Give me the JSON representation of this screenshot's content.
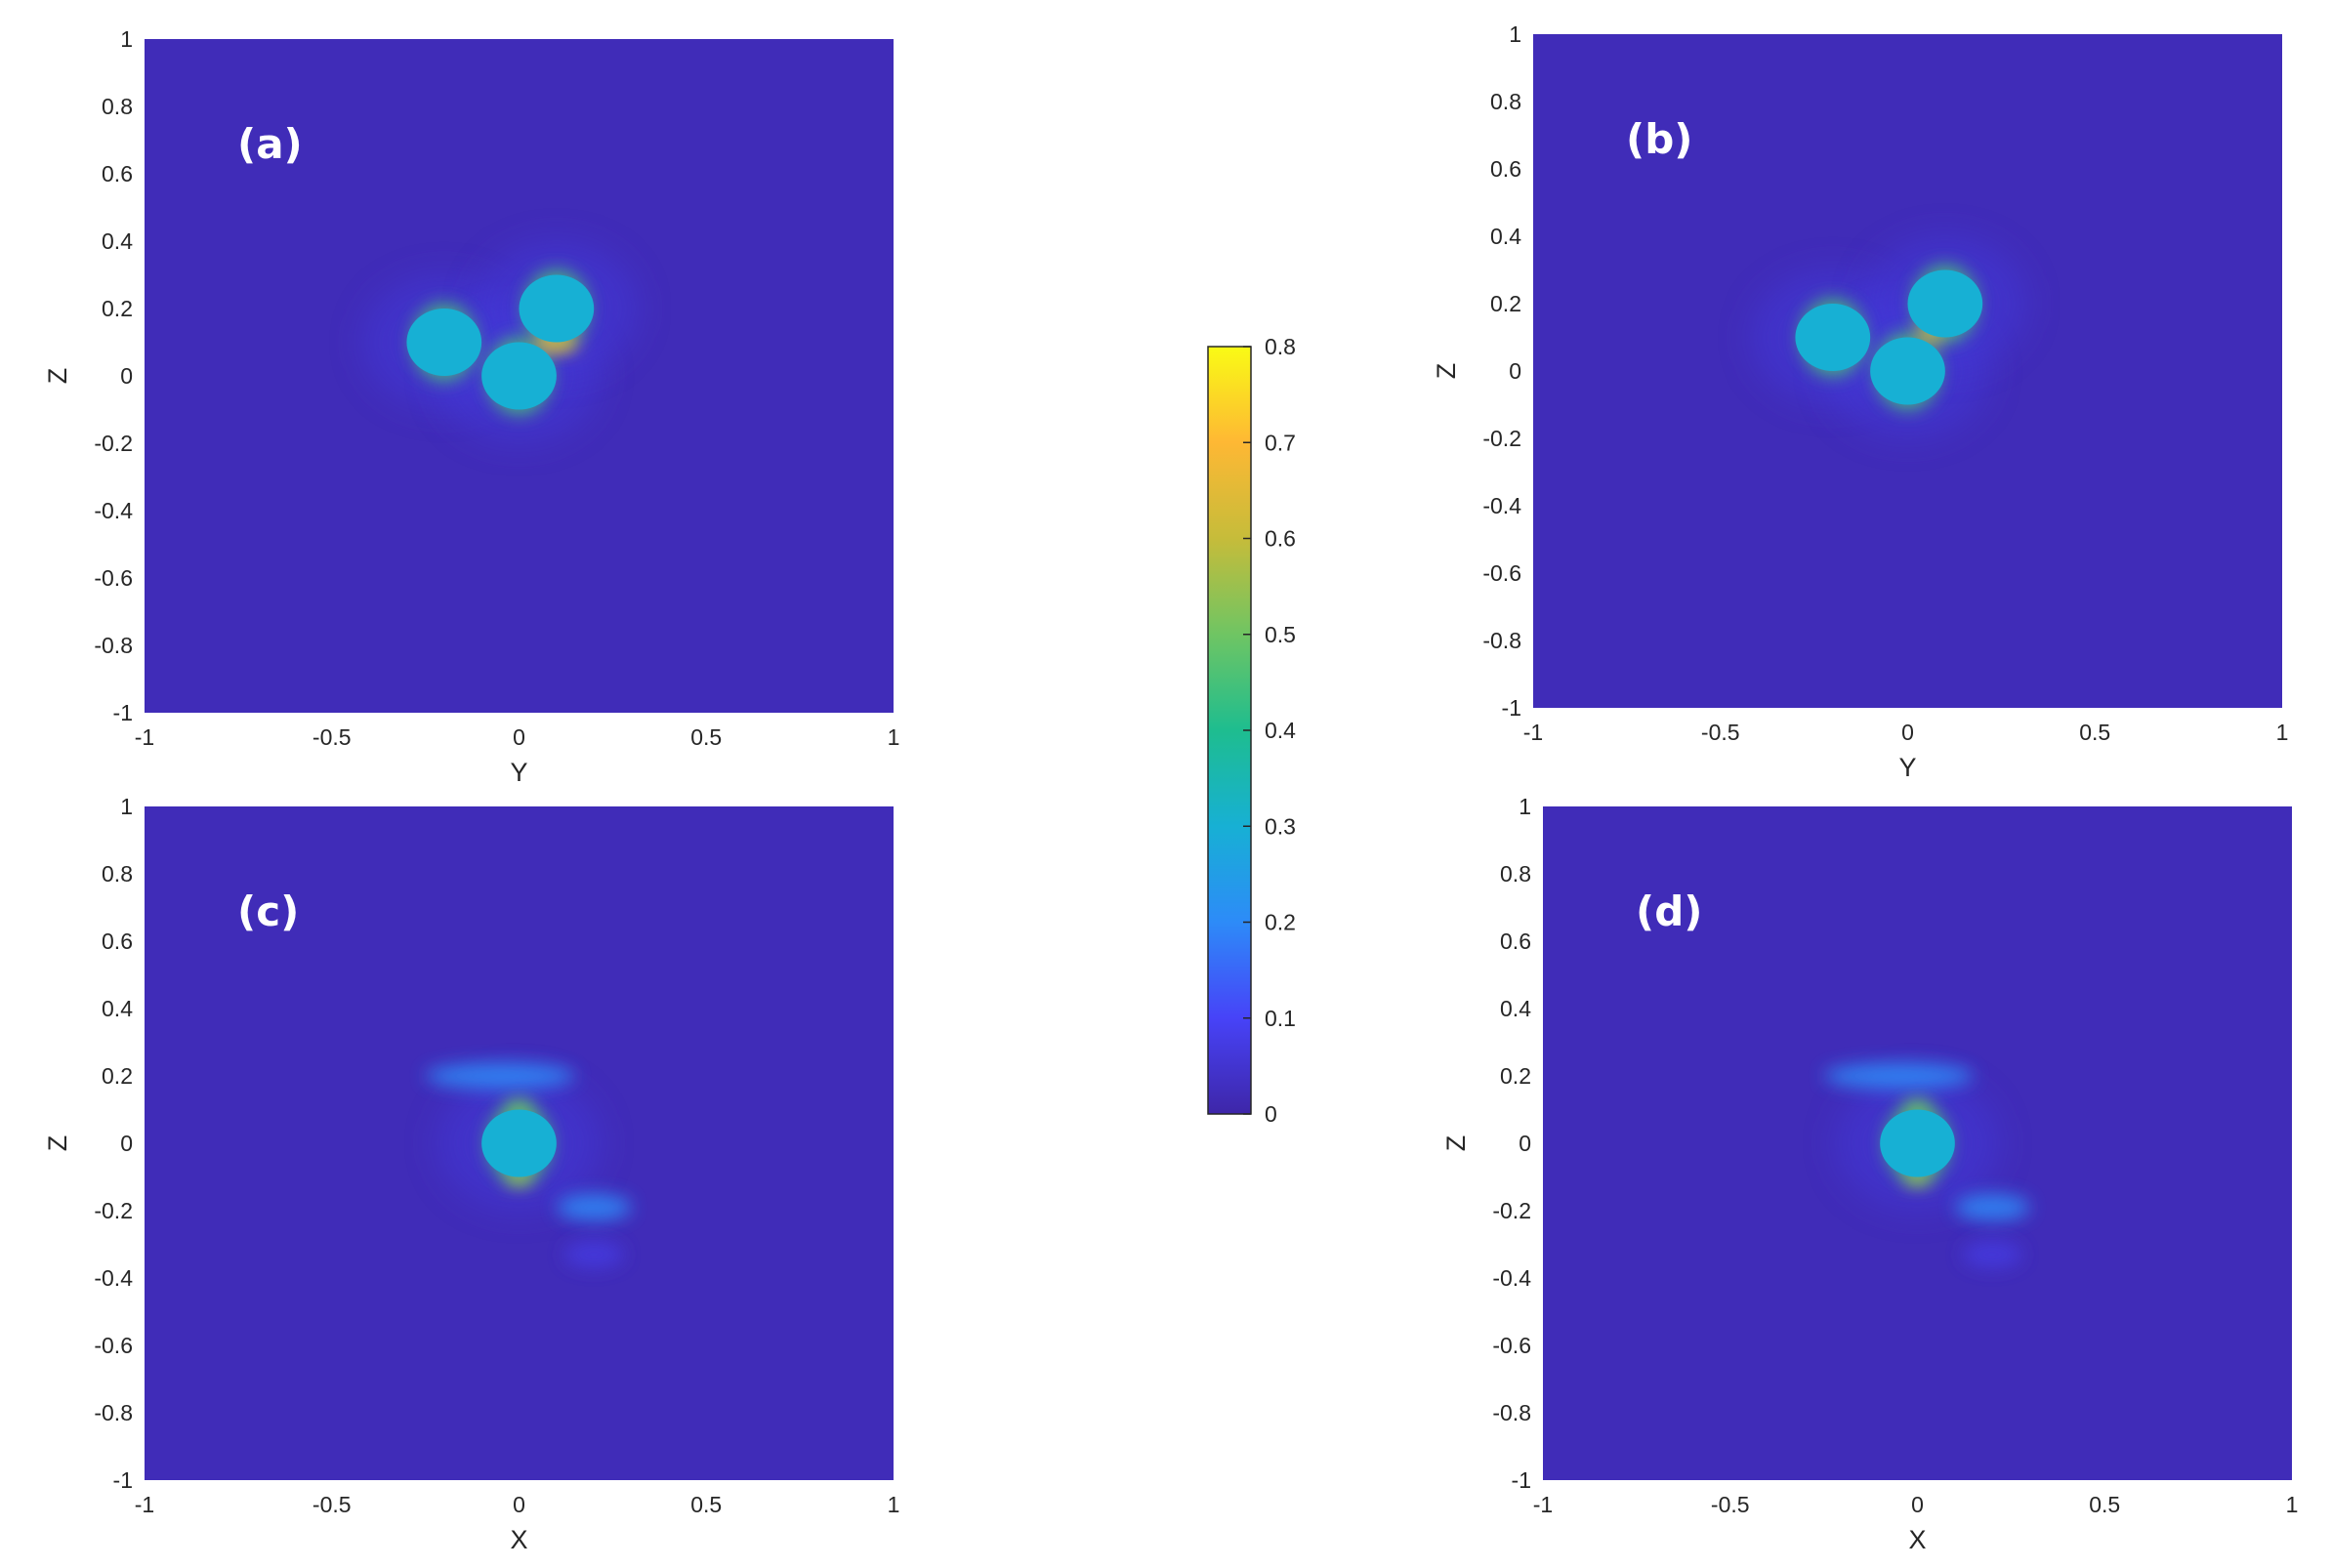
{
  "chart_data": [
    {
      "type": "heatmap",
      "panel_label": "(a)",
      "xlabel": "Y",
      "ylabel": "Z",
      "xlim": [
        -1,
        1
      ],
      "ylim": [
        -1,
        1
      ],
      "xticks": [
        "-1",
        "-0.5",
        "0",
        "0.5",
        "1"
      ],
      "yticks": [
        "-1",
        "-0.8",
        "-0.6",
        "-0.4",
        "-0.2",
        "0",
        "0.2",
        "0.4",
        "0.6",
        "0.8",
        "1"
      ],
      "background_value": 0.02,
      "particles": [
        {
          "x": -0.2,
          "y": 0.1,
          "radius": 0.1,
          "value": 0.3
        },
        {
          "x": 0.0,
          "y": 0.0,
          "radius": 0.1,
          "value": 0.3
        },
        {
          "x": 0.1,
          "y": 0.2,
          "radius": 0.1,
          "value": 0.3
        }
      ],
      "hotspots": [
        {
          "x": 0.08,
          "y": 0.1,
          "value": 0.7
        },
        {
          "x": 0.12,
          "y": 0.1,
          "value": 0.65
        }
      ],
      "lobes": []
    },
    {
      "type": "heatmap",
      "panel_label": "(b)",
      "xlabel": "Y",
      "ylabel": "Z",
      "xlim": [
        -1,
        1
      ],
      "ylim": [
        -1,
        1
      ],
      "xticks": [
        "-1",
        "-0.5",
        "0",
        "0.5",
        "1"
      ],
      "yticks": [
        "-1",
        "-0.8",
        "-0.6",
        "-0.4",
        "-0.2",
        "0",
        "0.2",
        "0.4",
        "0.6",
        "0.8",
        "1"
      ],
      "background_value": 0.02,
      "particles": [
        {
          "x": -0.2,
          "y": 0.1,
          "radius": 0.1,
          "value": 0.3
        },
        {
          "x": 0.0,
          "y": 0.0,
          "radius": 0.1,
          "value": 0.3
        },
        {
          "x": 0.1,
          "y": 0.2,
          "radius": 0.1,
          "value": 0.3
        }
      ],
      "hotspots": [
        {
          "x": 0.06,
          "y": 0.11,
          "value": 0.65
        }
      ],
      "lobes": []
    },
    {
      "type": "heatmap",
      "panel_label": "(c)",
      "xlabel": "X",
      "ylabel": "Z",
      "xlim": [
        -1,
        1
      ],
      "ylim": [
        -1,
        1
      ],
      "xticks": [
        "-1",
        "-0.5",
        "0",
        "0.5",
        "1"
      ],
      "yticks": [
        "-1",
        "-0.8",
        "-0.6",
        "-0.4",
        "-0.2",
        "0",
        "0.2",
        "0.4",
        "0.6",
        "0.8",
        "1"
      ],
      "background_value": 0.02,
      "particles": [
        {
          "x": 0.0,
          "y": 0.0,
          "radius": 0.1,
          "value": 0.3
        }
      ],
      "hotspots": [
        {
          "x": 0.0,
          "y": -0.1,
          "value": 0.55
        },
        {
          "x": 0.0,
          "y": 0.1,
          "value": 0.5
        }
      ],
      "lobes": [
        {
          "x": -0.05,
          "y": 0.2,
          "rx": 0.2,
          "ry": 0.04,
          "value": 0.2
        },
        {
          "x": 0.2,
          "y": -0.19,
          "rx": 0.1,
          "ry": 0.04,
          "value": 0.2
        },
        {
          "x": 0.2,
          "y": -0.33,
          "rx": 0.08,
          "ry": 0.04,
          "value": 0.07
        }
      ]
    },
    {
      "type": "heatmap",
      "panel_label": "(d)",
      "xlabel": "X",
      "ylabel": "Z",
      "xlim": [
        -1,
        1
      ],
      "ylim": [
        -1,
        1
      ],
      "xticks": [
        "-1",
        "-0.5",
        "0",
        "0.5",
        "1"
      ],
      "yticks": [
        "-1",
        "-0.8",
        "-0.6",
        "-0.4",
        "-0.2",
        "0",
        "0.2",
        "0.4",
        "0.6",
        "0.8",
        "1"
      ],
      "background_value": 0.02,
      "particles": [
        {
          "x": 0.0,
          "y": 0.0,
          "radius": 0.1,
          "value": 0.3
        }
      ],
      "hotspots": [
        {
          "x": 0.0,
          "y": -0.1,
          "value": 0.55
        },
        {
          "x": 0.0,
          "y": 0.1,
          "value": 0.5
        }
      ],
      "lobes": [
        {
          "x": -0.05,
          "y": 0.2,
          "rx": 0.2,
          "ry": 0.04,
          "value": 0.2
        },
        {
          "x": 0.2,
          "y": -0.19,
          "rx": 0.1,
          "ry": 0.04,
          "value": 0.2
        },
        {
          "x": 0.2,
          "y": -0.33,
          "rx": 0.08,
          "ry": 0.04,
          "value": 0.07
        }
      ]
    }
  ],
  "colorbar": {
    "min": 0,
    "max": 0.8,
    "ticks": [
      "0",
      "0.1",
      "0.2",
      "0.3",
      "0.4",
      "0.5",
      "0.6",
      "0.7",
      "0.8"
    ],
    "colormap": "parula",
    "colors": [
      "#3e26a8",
      "#4743f8",
      "#2d8bf8",
      "#17b0d4",
      "#1ebd8f",
      "#6fc563",
      "#c6bc3a",
      "#feb834",
      "#f9fb15"
    ]
  }
}
